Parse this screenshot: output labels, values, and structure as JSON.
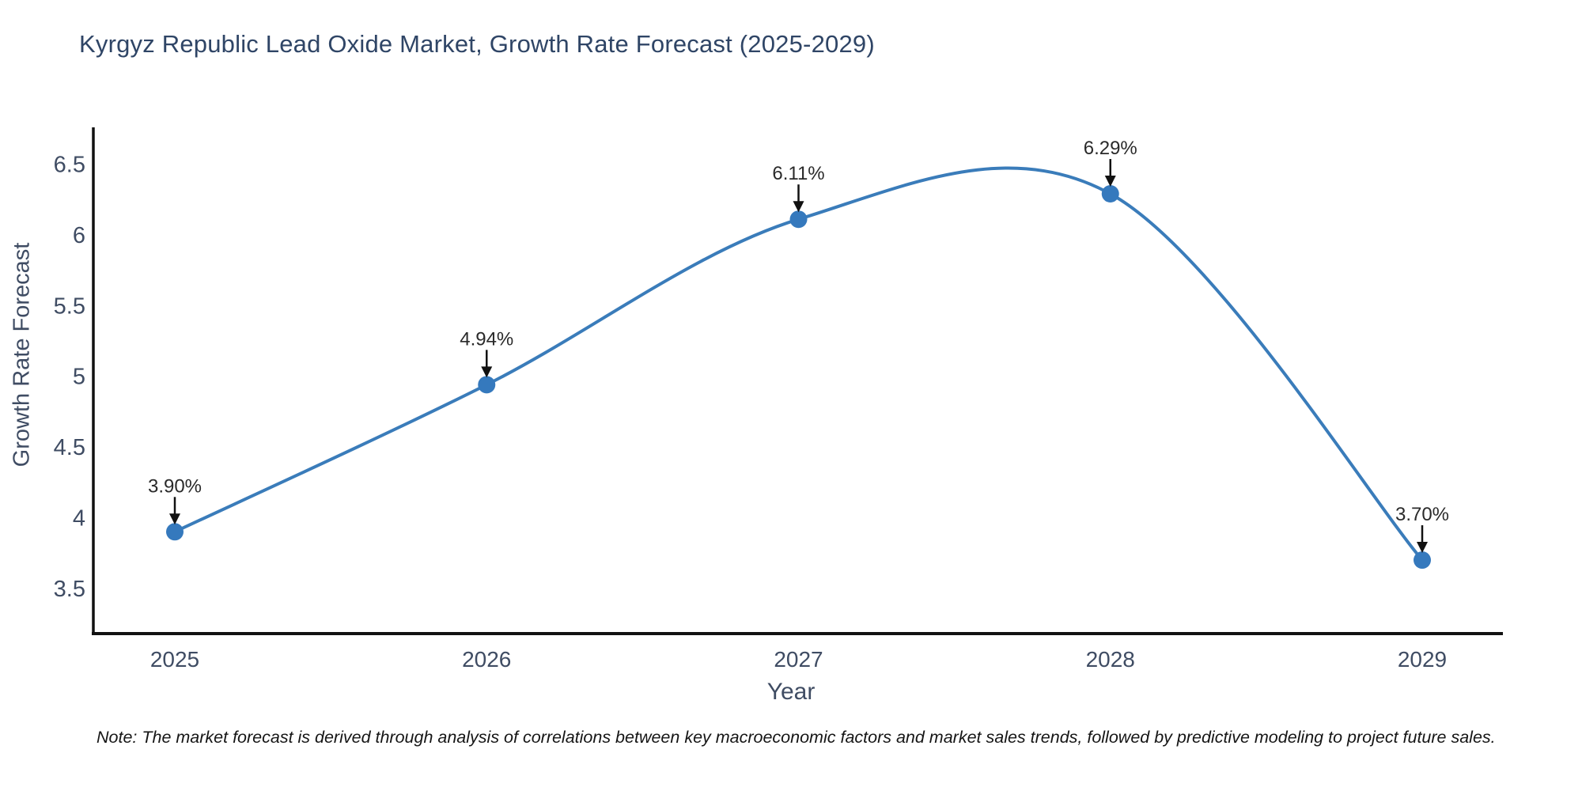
{
  "page": {
    "background": "#ffffff"
  },
  "chart_data": {
    "type": "line",
    "line_shape": "spline",
    "title": "Kyrgyz Republic Lead Oxide Market, Growth Rate Forecast (2025-2029)",
    "xlabel": "Year",
    "ylabel": "Growth Rate Forecast",
    "categories": [
      "2025",
      "2026",
      "2027",
      "2028",
      "2029"
    ],
    "values": [
      3.9,
      4.94,
      6.11,
      6.29,
      3.7
    ],
    "point_labels": [
      "3.90%",
      "4.94%",
      "6.11%",
      "6.29%",
      "3.70%"
    ],
    "yticks": [
      3.5,
      4,
      4.5,
      5,
      5.5,
      6,
      6.5
    ],
    "ylim": [
      3.18,
      6.76
    ],
    "grid": false,
    "legend_position": "none",
    "annotation_style": "label-above-with-down-arrow",
    "colors": {
      "line": "#3a7cba",
      "marker": "#3579bd",
      "annotation_text": "#2a2a2a",
      "annotation_arrow": "#111111",
      "axis_spine": "#111111",
      "title_text": "#2f4566",
      "tick_text": "#3f4c63",
      "note_text": "#151515"
    }
  },
  "note": {
    "text": "Note: The market forecast is derived through analysis of correlations between key macroeconomic factors and market sales trends, followed by predictive modeling to project future sales."
  }
}
